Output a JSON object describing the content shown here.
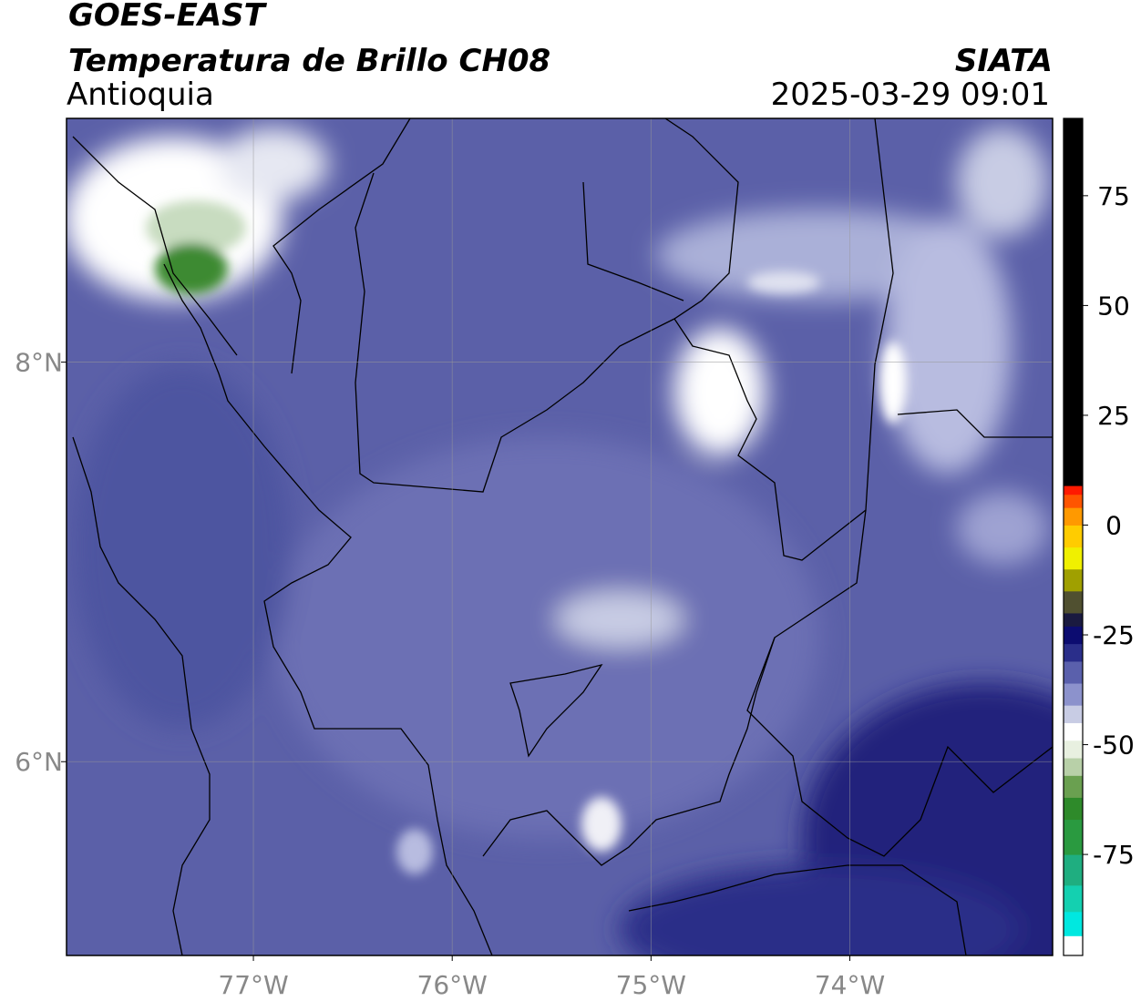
{
  "header": {
    "title": "GOES-EAST",
    "subtitle": "Temperatura de Brillo CH08",
    "region": "Antioquia",
    "source": "SIATA",
    "datetime": "2025-03-29 09:01"
  },
  "map": {
    "xlim": [
      -77.94,
      -72.98
    ],
    "ylim": [
      5.03,
      9.22
    ],
    "xticks": [
      {
        "value": -77,
        "label": "77°W"
      },
      {
        "value": -76,
        "label": "76°W"
      },
      {
        "value": -75,
        "label": "75°W"
      },
      {
        "value": -74,
        "label": "74°W"
      }
    ],
    "yticks": [
      {
        "value": 6,
        "label": "6°N"
      },
      {
        "value": 8,
        "label": "8°N"
      }
    ],
    "grid": true
  },
  "colorbar": {
    "lim": [
      -98,
      92.6
    ],
    "ticks": [
      -75,
      -50,
      -25,
      0,
      25,
      50,
      75
    ],
    "stops": [
      {
        "value": -98,
        "color": "#ffffff"
      },
      {
        "value": -93.5,
        "color": "#00e8e0"
      },
      {
        "value": -88,
        "color": "#14d0b0"
      },
      {
        "value": -82,
        "color": "#1fae80"
      },
      {
        "value": -75,
        "color": "#2a9a40"
      },
      {
        "value": -67,
        "color": "#2e8a2a"
      },
      {
        "value": -62,
        "color": "#6aa050"
      },
      {
        "value": -57,
        "color": "#b8d0a8"
      },
      {
        "value": -53,
        "color": "#e8f0e0"
      },
      {
        "value": -49,
        "color": "#ffffff"
      },
      {
        "value": -45,
        "color": "#c8cce4"
      },
      {
        "value": -41,
        "color": "#8c92cc"
      },
      {
        "value": -36,
        "color": "#5a60ac"
      },
      {
        "value": -31,
        "color": "#2a2e8a"
      },
      {
        "value": -27,
        "color": "#0c0c70"
      },
      {
        "value": -23,
        "color": "#1a1a40"
      },
      {
        "value": -20,
        "color": "#505030"
      },
      {
        "value": -15,
        "color": "#a0a000"
      },
      {
        "value": -10,
        "color": "#f0f000"
      },
      {
        "value": -5,
        "color": "#ffcc00"
      },
      {
        "value": 0,
        "color": "#ff9900"
      },
      {
        "value": 4,
        "color": "#ff5500"
      },
      {
        "value": 7,
        "color": "#ff1a00"
      },
      {
        "value": 9,
        "color": "#000000"
      }
    ]
  }
}
